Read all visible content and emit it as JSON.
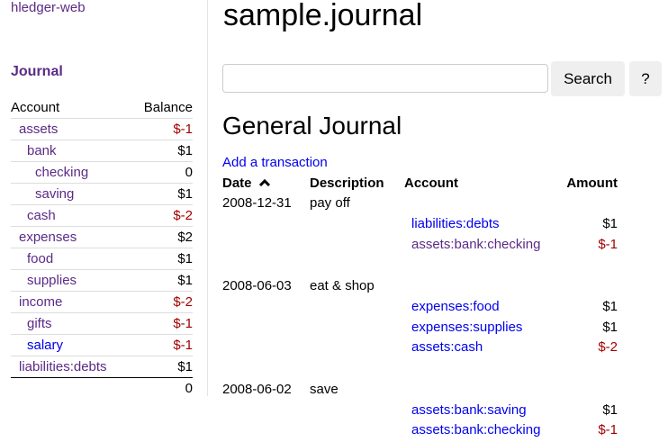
{
  "sidebar": {
    "brand": "hledger-web",
    "journal_link": "Journal",
    "headers": {
      "account": "Account",
      "balance": "Balance"
    },
    "accounts": [
      {
        "name": "assets",
        "balance": "$-1",
        "depth": 0,
        "negative": true,
        "visited": true
      },
      {
        "name": "bank",
        "balance": "$1",
        "depth": 1,
        "negative": false,
        "visited": true
      },
      {
        "name": "checking",
        "balance": "0",
        "depth": 2,
        "negative": false,
        "visited": true
      },
      {
        "name": "saving",
        "balance": "$1",
        "depth": 2,
        "negative": false,
        "visited": true
      },
      {
        "name": "cash",
        "balance": "$-2",
        "depth": 1,
        "negative": true,
        "visited": true
      },
      {
        "name": "expenses",
        "balance": "$2",
        "depth": 0,
        "negative": false,
        "visited": true
      },
      {
        "name": "food",
        "balance": "$1",
        "depth": 1,
        "negative": false,
        "visited": true
      },
      {
        "name": "supplies",
        "balance": "$1",
        "depth": 1,
        "negative": false,
        "visited": true
      },
      {
        "name": "income",
        "balance": "$-2",
        "depth": 0,
        "negative": true,
        "visited": true
      },
      {
        "name": "gifts",
        "balance": "$-1",
        "depth": 1,
        "negative": true,
        "visited": true
      },
      {
        "name": "salary",
        "balance": "$-1",
        "depth": 1,
        "negative": true,
        "visited": false
      },
      {
        "name": "liabilities:debts",
        "balance": "$1",
        "depth": 0,
        "negative": false,
        "visited": true
      }
    ],
    "total": "0"
  },
  "main": {
    "title": "sample.journal",
    "search": {
      "value": "",
      "placeholder": "",
      "button": "Search",
      "help": "?"
    },
    "heading": "General Journal",
    "add_link": "Add a transaction",
    "columns": {
      "date": "Date",
      "sort_icon": "chevron-up-icon",
      "description": "Description",
      "account": "Account",
      "amount": "Amount"
    },
    "transactions": [
      {
        "date": "2008-12-31",
        "description": "pay off",
        "postings": [
          {
            "account": "liabilities:debts",
            "amount": "$1",
            "negative": false,
            "visited": false
          },
          {
            "account": "assets:bank:checking",
            "amount": "$-1",
            "negative": true,
            "visited": true
          }
        ]
      },
      {
        "date": "2008-06-03",
        "description": "eat & shop",
        "postings": [
          {
            "account": "expenses:food",
            "amount": "$1",
            "negative": false,
            "visited": false
          },
          {
            "account": "expenses:supplies",
            "amount": "$1",
            "negative": false,
            "visited": false
          },
          {
            "account": "assets:cash",
            "amount": "$-2",
            "negative": true,
            "visited": false
          }
        ]
      },
      {
        "date": "2008-06-02",
        "description": "save",
        "postings": [
          {
            "account": "assets:bank:saving",
            "amount": "$1",
            "negative": false,
            "visited": false
          },
          {
            "account": "assets:bank:checking",
            "amount": "$-1",
            "negative": true,
            "visited": false
          }
        ]
      }
    ]
  },
  "colors": {
    "link": "#0000ee",
    "visited": "#5b2a86",
    "negative": "#a00000"
  }
}
